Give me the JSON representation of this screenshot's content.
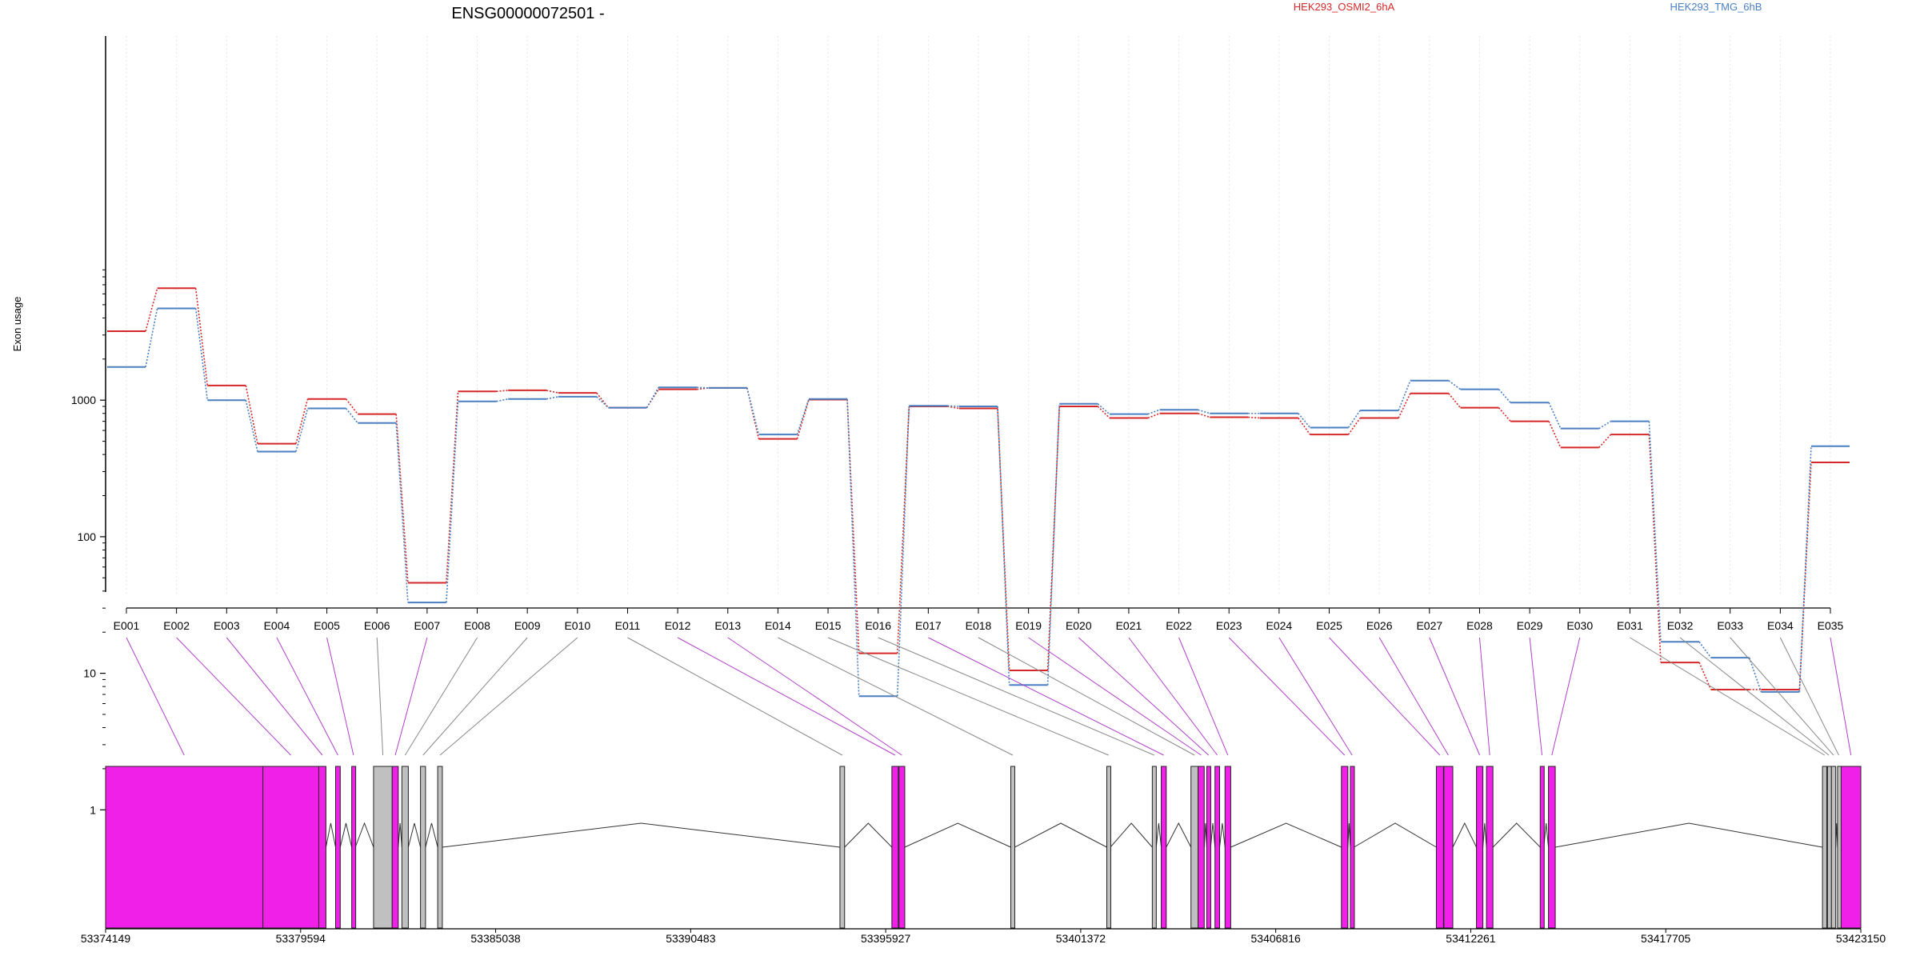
{
  "chart_data": {
    "type": "line",
    "title": "ENSG00000072501 -",
    "ylabel": "Exon usage",
    "xlabel": "",
    "yscale": "log",
    "yticks": [
      "1",
      "10",
      "100",
      "1000"
    ],
    "grid": "vertical dotted lines at each exon",
    "categories": [
      "E001",
      "E002",
      "E003",
      "E004",
      "E005",
      "E006",
      "E007",
      "E008",
      "E009",
      "E010",
      "E011",
      "E012",
      "E013",
      "E014",
      "E015",
      "E016",
      "E017",
      "E018",
      "E019",
      "E020",
      "E021",
      "E022",
      "E023",
      "E024",
      "E025",
      "E026",
      "E027",
      "E028",
      "E029",
      "E030",
      "E031",
      "E032",
      "E033",
      "E034",
      "E035"
    ],
    "series": [
      {
        "name": "HEK293_OSMI2_6hA",
        "color": "#d62728",
        "values": [
          3200,
          6600,
          1280,
          480,
          1020,
          790,
          46,
          1160,
          1180,
          1130,
          880,
          1200,
          1230,
          520,
          1010,
          14,
          900,
          870,
          10.5,
          900,
          740,
          800,
          750,
          740,
          560,
          740,
          1120,
          880,
          700,
          450,
          560,
          12,
          7.6,
          7.6,
          350
        ]
      },
      {
        "name": "HEK293_TMG_6hB",
        "color": "#4a7fc1",
        "values": [
          1750,
          4700,
          1000,
          420,
          870,
          680,
          33,
          980,
          1020,
          1060,
          880,
          1240,
          1230,
          560,
          1020,
          6.8,
          910,
          900,
          8.2,
          940,
          790,
          850,
          800,
          800,
          630,
          840,
          1390,
          1200,
          960,
          620,
          700,
          17,
          13,
          7.3,
          460
        ]
      }
    ],
    "legend": [
      "HEK293_OSMI2_6hA",
      "HEK293_TMG_6hB"
    ],
    "legend_placement": "top",
    "genomic_axis": {
      "tick_labels": [
        "53374149",
        "53379594",
        "53385038",
        "53390483",
        "53395927",
        "53401372",
        "53406816",
        "53412261",
        "53417705",
        "53423150"
      ],
      "start": 53374149,
      "end": 53423150
    },
    "gene_model": {
      "exons": [
        {
          "id": "E001",
          "start": 53374149,
          "end": 53378540,
          "hl": true
        },
        {
          "id": "E002",
          "start": 53378540,
          "end": 53380100,
          "hl": true
        },
        {
          "id": "E003",
          "start": 53380100,
          "end": 53380300,
          "hl": true
        },
        {
          "id": "E004",
          "start": 53380570,
          "end": 53380700,
          "hl": true
        },
        {
          "id": "E005",
          "start": 53381020,
          "end": 53381120,
          "hl": true
        },
        {
          "id": "E006",
          "start": 53381630,
          "end": 53382150,
          "hl": false
        },
        {
          "id": "E007",
          "start": 53382150,
          "end": 53382320,
          "hl": true
        },
        {
          "id": "E008",
          "start": 53382420,
          "end": 53382600,
          "hl": false
        },
        {
          "id": "E009",
          "start": 53382940,
          "end": 53383080,
          "hl": false
        },
        {
          "id": "E010",
          "start": 53383420,
          "end": 53383550,
          "hl": false
        },
        {
          "id": "E011",
          "start": 53394650,
          "end": 53394780,
          "hl": false
        },
        {
          "id": "E012",
          "start": 53396100,
          "end": 53396280,
          "hl": true
        },
        {
          "id": "E013",
          "start": 53396300,
          "end": 53396460,
          "hl": true
        },
        {
          "id": "E014",
          "start": 53399420,
          "end": 53399530,
          "hl": false
        },
        {
          "id": "E015",
          "start": 53402100,
          "end": 53402200,
          "hl": false
        },
        {
          "id": "E016",
          "start": 53403370,
          "end": 53403480,
          "hl": false
        },
        {
          "id": "E017",
          "start": 53403620,
          "end": 53403760,
          "hl": true
        },
        {
          "id": "E018",
          "start": 53404450,
          "end": 53404650,
          "hl": false
        },
        {
          "id": "E019",
          "start": 53404650,
          "end": 53404820,
          "hl": true
        },
        {
          "id": "E020",
          "start": 53404890,
          "end": 53405000,
          "hl": true
        },
        {
          "id": "E021",
          "start": 53405120,
          "end": 53405250,
          "hl": true
        },
        {
          "id": "E022",
          "start": 53405400,
          "end": 53405560,
          "hl": true
        },
        {
          "id": "E023",
          "start": 53408650,
          "end": 53408830,
          "hl": true
        },
        {
          "id": "E024",
          "start": 53408900,
          "end": 53409000,
          "hl": true
        },
        {
          "id": "E025",
          "start": 53411300,
          "end": 53411500,
          "hl": true
        },
        {
          "id": "E026",
          "start": 53411510,
          "end": 53411760,
          "hl": true
        },
        {
          "id": "E027",
          "start": 53412420,
          "end": 53412600,
          "hl": true
        },
        {
          "id": "E028",
          "start": 53412700,
          "end": 53412880,
          "hl": true
        },
        {
          "id": "E029",
          "start": 53414200,
          "end": 53414300,
          "hl": true
        },
        {
          "id": "E030",
          "start": 53414430,
          "end": 53414620,
          "hl": true
        },
        {
          "id": "E031",
          "start": 53422080,
          "end": 53422200,
          "hl": false
        },
        {
          "id": "E032",
          "start": 53422220,
          "end": 53422300,
          "hl": false
        },
        {
          "id": "E033",
          "start": 53422330,
          "end": 53422450,
          "hl": false
        },
        {
          "id": "E034",
          "start": 53422500,
          "end": 53422570,
          "hl": false
        },
        {
          "id": "E035",
          "start": 53422600,
          "end": 53423150,
          "hl": true
        }
      ]
    }
  }
}
